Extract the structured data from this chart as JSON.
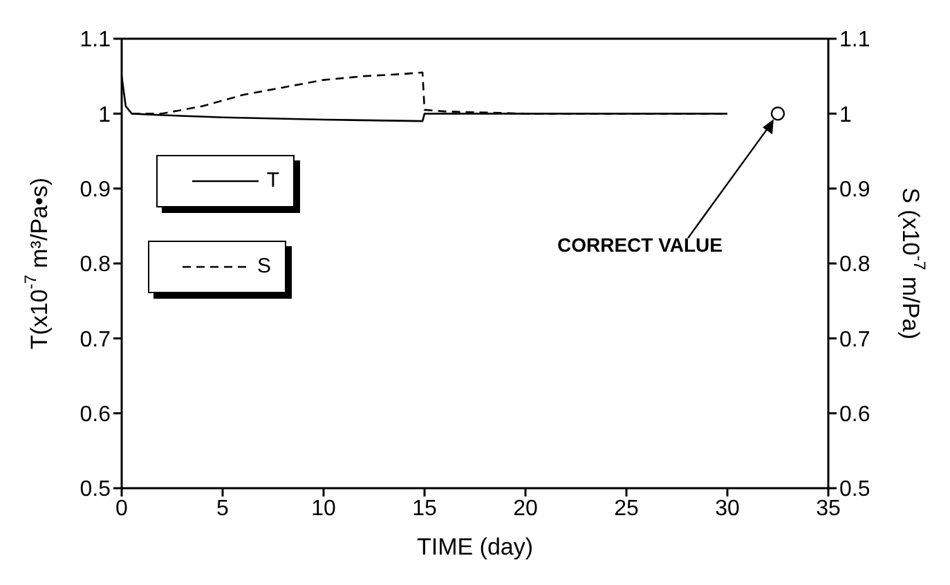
{
  "chart_data": {
    "type": "line",
    "xlabel": "TIME (day)",
    "ylabel": "T(x10$^{-7}$ m³/Pa•s)",
    "y2label": "S (x10$^{-7}$ m/Pa)",
    "xlim": [
      0,
      35
    ],
    "xticks": [
      0,
      5,
      10,
      15,
      20,
      25,
      30,
      35
    ],
    "ylim": [
      0.5,
      1.1
    ],
    "yticks": [
      0.5,
      0.6,
      0.7,
      0.8,
      0.9,
      1,
      1.1
    ],
    "y2lim": [
      0.5,
      1.1
    ],
    "y2ticks": [
      0.5,
      0.6,
      0.7,
      0.8,
      0.9,
      1,
      1.1
    ],
    "grid": false,
    "legend": "left",
    "marker": "none",
    "series": [
      {
        "name": "T",
        "color": "#000000",
        "line_style": "solid",
        "x": [
          0,
          0.2,
          0.5,
          2,
          5,
          10,
          14.9,
          15,
          15.5,
          20,
          25,
          30
        ],
        "values": [
          1.05,
          1.01,
          1.0,
          0.998,
          0.995,
          0.992,
          0.99,
          1.0,
          1.0,
          1.0,
          1.0,
          1.0
        ]
      },
      {
        "name": "S",
        "color": "#000000",
        "line_style": "dashed",
        "axis": "y2",
        "x": [
          0.5,
          2,
          4,
          6,
          8,
          10,
          12,
          14,
          14.9,
          15,
          16,
          20,
          25,
          30
        ],
        "values": [
          1.0,
          1.0,
          1.01,
          1.025,
          1.035,
          1.045,
          1.05,
          1.053,
          1.055,
          1.005,
          1.003,
          1.0,
          1.0,
          1.0
        ]
      },
      {
        "type": "scatter",
        "color": "#000000",
        "marker": "circle",
        "x": [
          32.5
        ],
        "values": [
          1.0
        ]
      }
    ],
    "annotations": [
      {
        "text": "CORRECT VALUE",
        "x": 32.5,
        "y": 1.0
      }
    ]
  }
}
